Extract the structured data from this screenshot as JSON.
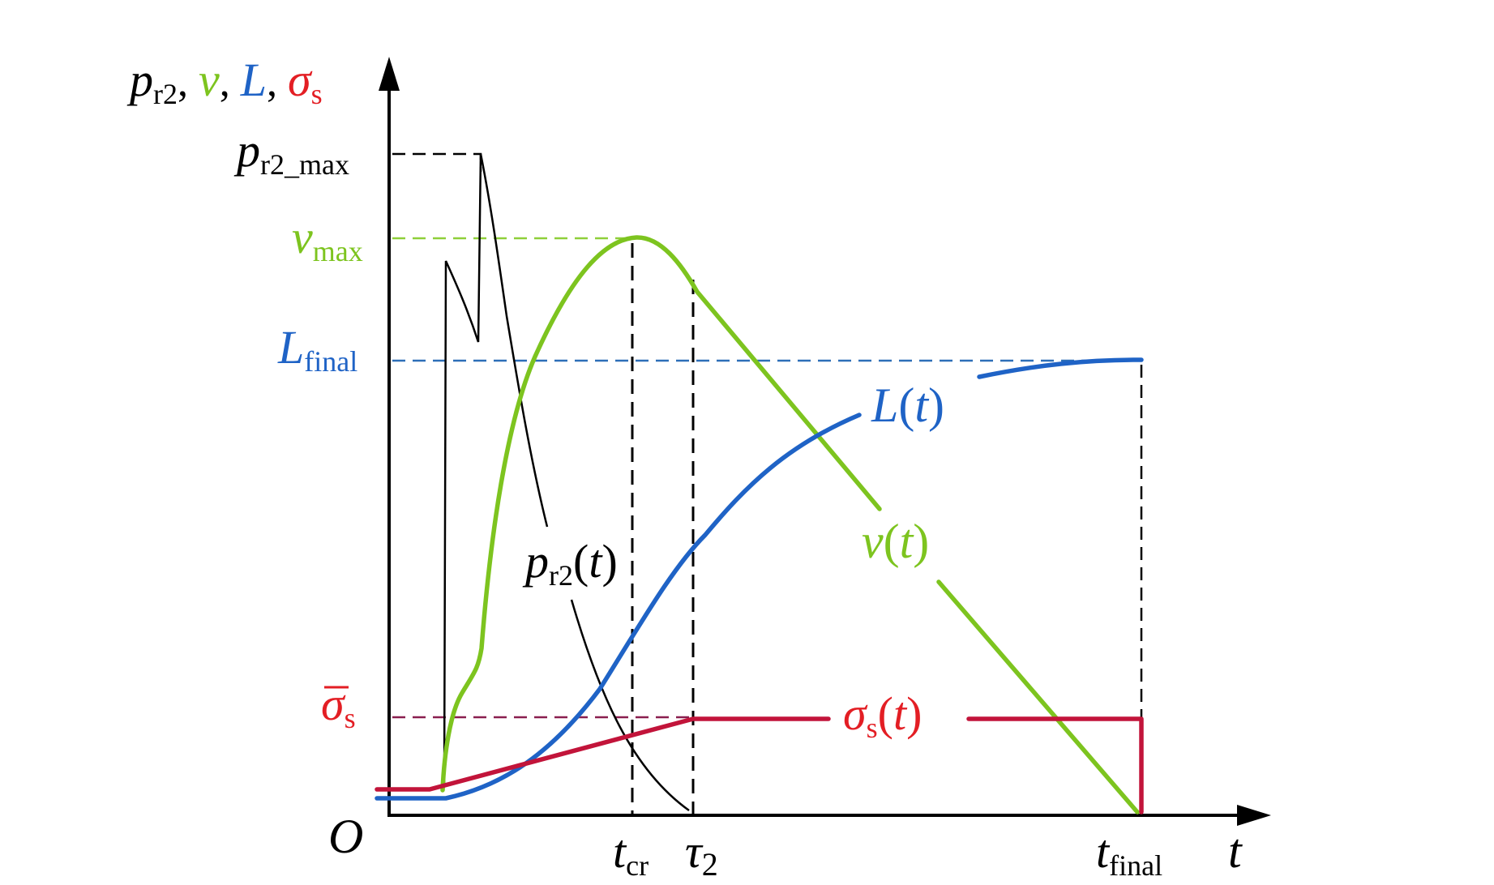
{
  "labels": {
    "y_axis_p": "p",
    "y_axis_p_sub": "r2",
    "y_axis_sep1": ", ",
    "y_axis_v": "v",
    "y_axis_sep2": ", ",
    "y_axis_L": "L",
    "y_axis_sep3": ", ",
    "y_axis_sigma": "σ",
    "y_axis_sigma_sub": "s",
    "x_axis": "t",
    "origin": "O",
    "p_max": "p",
    "p_max_sub": "r2_max",
    "v_max": "v",
    "v_max_sub": "max",
    "L_final": "L",
    "L_final_sub": "final",
    "sigma_bar": "σ",
    "sigma_bar_sub": "s",
    "t_cr": "t",
    "t_cr_sub": "cr",
    "tau2": "τ",
    "tau2_sub": "2",
    "t_final": "t",
    "t_final_sub": "final",
    "curve_L": "L",
    "curve_L_arg": "t",
    "curve_v": "v",
    "curve_v_arg": "t",
    "curve_p": "p",
    "curve_p_sub": "r2",
    "curve_p_arg": "t",
    "curve_sigma": "σ",
    "curve_sigma_sub": "s",
    "curve_sigma_arg": "t",
    "open_paren": "(",
    "close_paren": ")"
  },
  "colors": {
    "axis": "#000000",
    "pressure": "#000000",
    "velocity": "#7dc41f",
    "length": "#1f63c6",
    "stress": "#e31e24",
    "stress_line": "#c2143a",
    "velocity_dash": "#8fcf3a",
    "length_dash": "#2d6fb8",
    "stress_dash": "#8a1f4f"
  }
}
